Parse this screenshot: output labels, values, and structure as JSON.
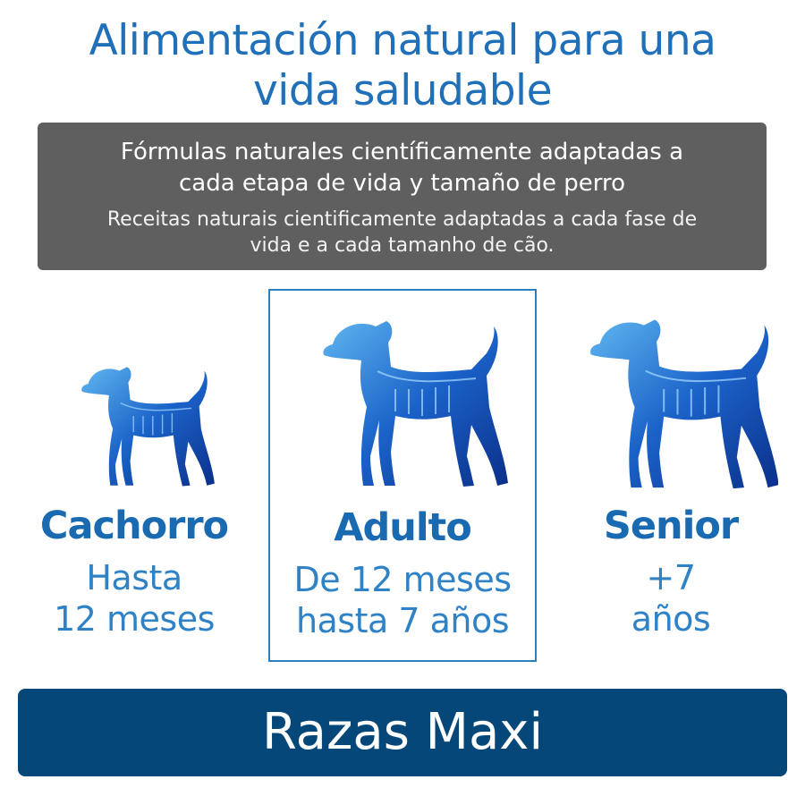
{
  "header": {
    "title_line1": "Alimentación natural para una",
    "title_line2": "vida saludable"
  },
  "info_box": {
    "es_line1": "Fórmulas naturales científicamente adaptadas a",
    "es_line2": "cada etapa de vida y tamaño de perro",
    "pt_line1": "Receitas naturais cientificamente adaptadas a cada fase de",
    "pt_line2": "vida e a cada tamanho de cão."
  },
  "stages": [
    {
      "name": "Cachorro",
      "age_line1": "Hasta",
      "age_line2": "12 meses",
      "highlighted": false
    },
    {
      "name": "Adulto",
      "age_line1": "De 12 meses",
      "age_line2": "hasta 7 años",
      "highlighted": true
    },
    {
      "name": "Senior",
      "age_line1": "+7",
      "age_line2": "años",
      "highlighted": false
    }
  ],
  "footer": {
    "label": "Razas Maxi"
  },
  "colors": {
    "title": "#1f70b8",
    "box_gray": "#5f5f5f",
    "navy": "#06477a",
    "highlight_border": "#2a80c0"
  }
}
